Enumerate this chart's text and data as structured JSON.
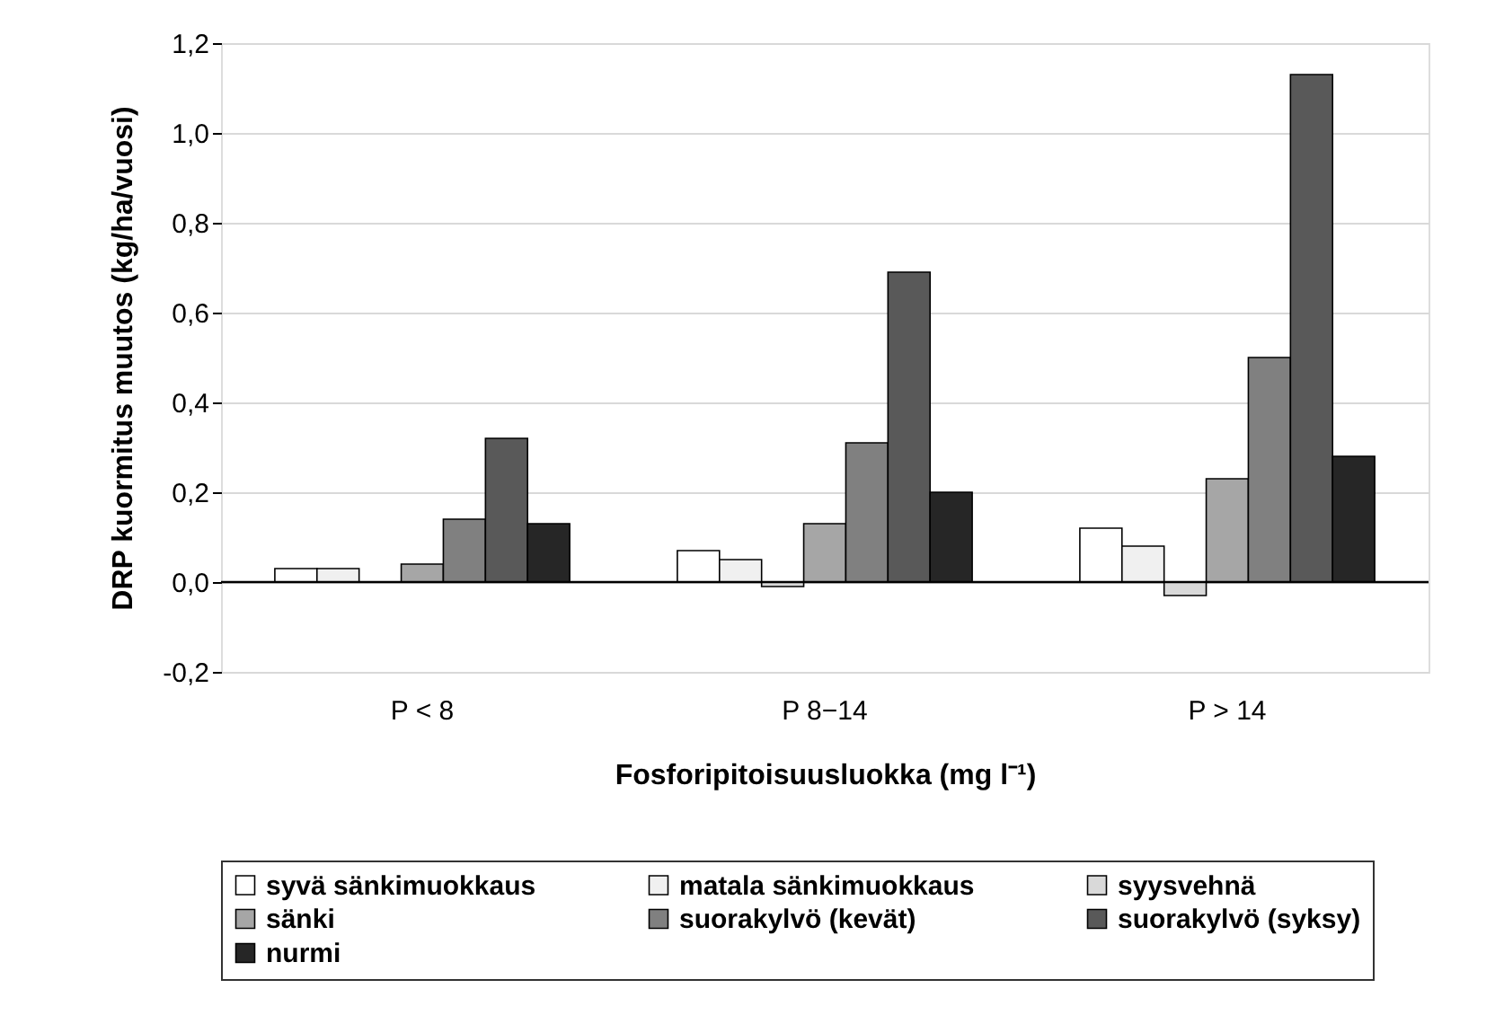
{
  "chart_data": {
    "type": "bar",
    "xlabel": "Fosforipitoisuusluokka  (mg l⁻¹)",
    "ylabel": "DRP kuormitus muutos (kg/ha/vuosi)",
    "categories": [
      "P < 8",
      "P 8−14",
      "P > 14"
    ],
    "series": [
      {
        "name": "syvä sänkimuokkaus",
        "color": "#ffffff",
        "values": [
          0.03,
          0.07,
          0.12
        ]
      },
      {
        "name": "matala sänkimuokkaus",
        "color": "#f0f0f0",
        "values": [
          0.03,
          0.05,
          0.08
        ]
      },
      {
        "name": "syysvehnä",
        "color": "#d9d9d9",
        "values": [
          null,
          -0.01,
          -0.03
        ]
      },
      {
        "name": "sänki",
        "color": "#a6a6a6",
        "values": [
          0.04,
          0.13,
          0.23
        ]
      },
      {
        "name": "suorakylvö (kevät)",
        "color": "#808080",
        "values": [
          0.14,
          0.31,
          0.5
        ]
      },
      {
        "name": "suorakylvö (syksy)",
        "color": "#595959",
        "values": [
          0.32,
          0.69,
          1.13
        ]
      },
      {
        "name": "nurmi",
        "color": "#262626",
        "values": [
          0.13,
          0.2,
          0.28
        ]
      }
    ],
    "ylim": [
      -0.2,
      1.2
    ],
    "yticks": [
      {
        "value": -0.2,
        "label": "-0,2"
      },
      {
        "value": 0,
        "label": "0,0"
      },
      {
        "value": 0.2,
        "label": "0,2"
      },
      {
        "value": 0.4,
        "label": "0,4"
      },
      {
        "value": 0.6,
        "label": "0,6"
      },
      {
        "value": 0.8,
        "label": "0,8"
      },
      {
        "value": 1.0,
        "label": "1,0"
      },
      {
        "value": 1.2,
        "label": "1,2"
      }
    ],
    "ref_lines": [
      {
        "axis": "y",
        "value": 0,
        "color": "#000000"
      }
    ],
    "grid": "y",
    "legend": "bottom"
  }
}
